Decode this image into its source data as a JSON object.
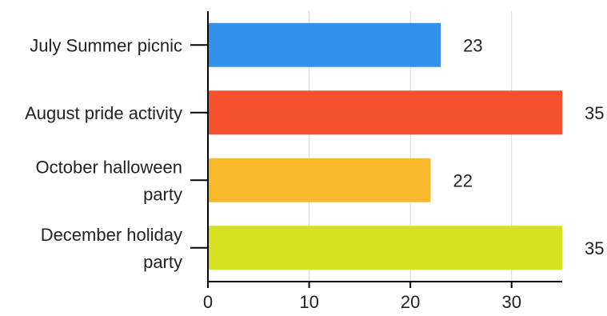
{
  "chart_data": {
    "type": "bar",
    "orientation": "horizontal",
    "title": "",
    "xlabel": "",
    "ylabel": "",
    "categories": [
      [
        "July Summer picnic"
      ],
      [
        "August pride activity"
      ],
      [
        "October halloween",
        "party"
      ],
      [
        "December holiday",
        "party"
      ]
    ],
    "values": [
      23,
      35,
      22,
      35
    ],
    "data_labels": [
      "23",
      "35",
      "22",
      "35"
    ],
    "colors": [
      "#3292ea",
      "#f5512d",
      "#f6b92b",
      "#d6e022"
    ],
    "xlim": [
      0,
      35
    ],
    "xticks": [
      0,
      10,
      20,
      30
    ],
    "xtick_labels": [
      "0",
      "10",
      "20",
      "30"
    ],
    "grid": true,
    "legend": "none"
  }
}
